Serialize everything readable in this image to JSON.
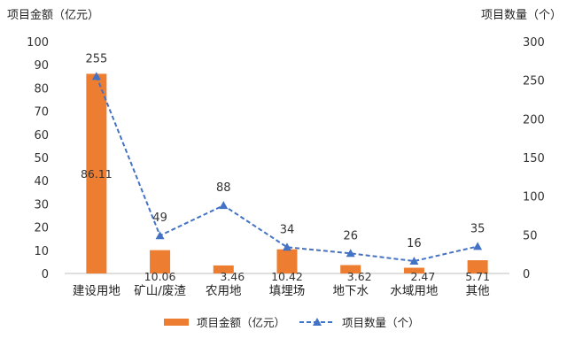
{
  "chart_data": {
    "type": "bar",
    "title": "",
    "ylabel_left": "项目金额（亿元）",
    "ylabel_right": "项目数量（个）",
    "categories": [
      "建设用地",
      "矿山/废渣",
      "农用地",
      "填埋场",
      "地下水",
      "水域用地",
      "其他"
    ],
    "ylim_left": [
      0,
      100
    ],
    "yticks_left": [
      "0",
      "10",
      "20",
      "30",
      "40",
      "50",
      "60",
      "70",
      "80",
      "90",
      "100"
    ],
    "ylim_right": [
      0,
      300
    ],
    "yticks_right": [
      "0",
      "50",
      "100",
      "150",
      "200",
      "250",
      "300"
    ],
    "series": [
      {
        "name": "项目金额（亿元）",
        "type": "bar",
        "axis": "left",
        "color": "#ED7D31",
        "values": [
          86.11,
          10.06,
          3.46,
          10.42,
          3.62,
          2.47,
          5.71
        ],
        "value_labels": [
          "86.11",
          "10.06",
          "3.46",
          "10.42",
          "3.62",
          "2.47",
          "5.71"
        ]
      },
      {
        "name": "项目数量（个）",
        "type": "line",
        "style": "dashed",
        "marker": "triangle",
        "axis": "right",
        "color": "#4472C4",
        "values": [
          255,
          49,
          88,
          34,
          26,
          16,
          35
        ],
        "value_labels": [
          "255",
          "49",
          "88",
          "34",
          "26",
          "16",
          "35"
        ]
      }
    ],
    "grid": false,
    "legend_position": "bottom"
  }
}
